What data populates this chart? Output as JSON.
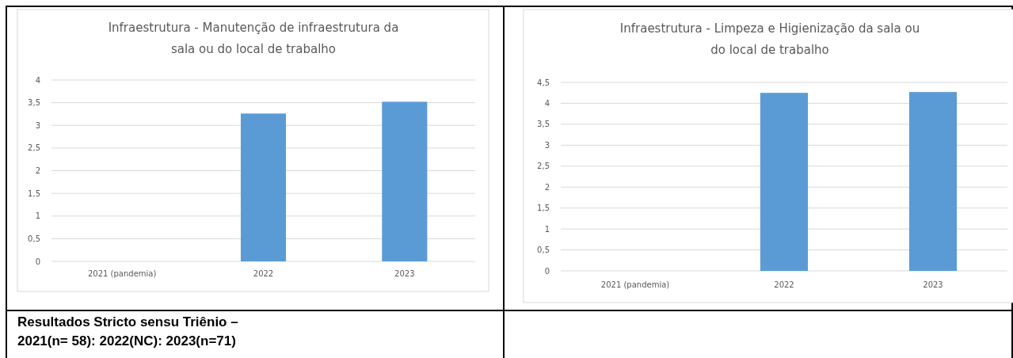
{
  "chart_data": [
    {
      "type": "bar",
      "title": "Infraestrutura - Manutenção de infraestrutura da sala ou do local de trabalho",
      "categories": [
        "2021 (pandemia)",
        "2022",
        "2023"
      ],
      "values": [
        null,
        3.26,
        3.52
      ],
      "color": "#5b9bd5",
      "ylim": [
        0,
        4
      ],
      "yticks": [
        0,
        {
          "value": 0.5,
          "label": "0,5"
        },
        1,
        {
          "value": 1.5,
          "label": "1,5"
        },
        2,
        {
          "value": 2.5,
          "label": "2,5"
        },
        3,
        {
          "value": 3.5,
          "label": "3,5"
        },
        4
      ],
      "grid": "y",
      "annotations": [
        "Resultados Stricto sensu Triênio –",
        "2021(n= 58): 2022(NC): 2023(n=71)"
      ]
    },
    {
      "type": "bar",
      "title": "Infraestrutura - Limpeza e Higienização da sala ou do local de trabalho",
      "categories": [
        "2021 (pandemia)",
        "2022",
        "2023"
      ],
      "values": [
        null,
        4.25,
        4.27
      ],
      "color": "#5b9bd5",
      "ylim": [
        0,
        4.5
      ],
      "yticks": [
        0,
        {
          "value": 0.5,
          "label": "0,5"
        },
        1,
        {
          "value": 1.5,
          "label": "1,5"
        },
        2,
        {
          "value": 2.5,
          "label": "2,5"
        },
        3,
        {
          "value": 3.5,
          "label": "3,5"
        },
        4,
        {
          "value": 4.5,
          "label": "4,5"
        }
      ],
      "grid": "y"
    }
  ]
}
